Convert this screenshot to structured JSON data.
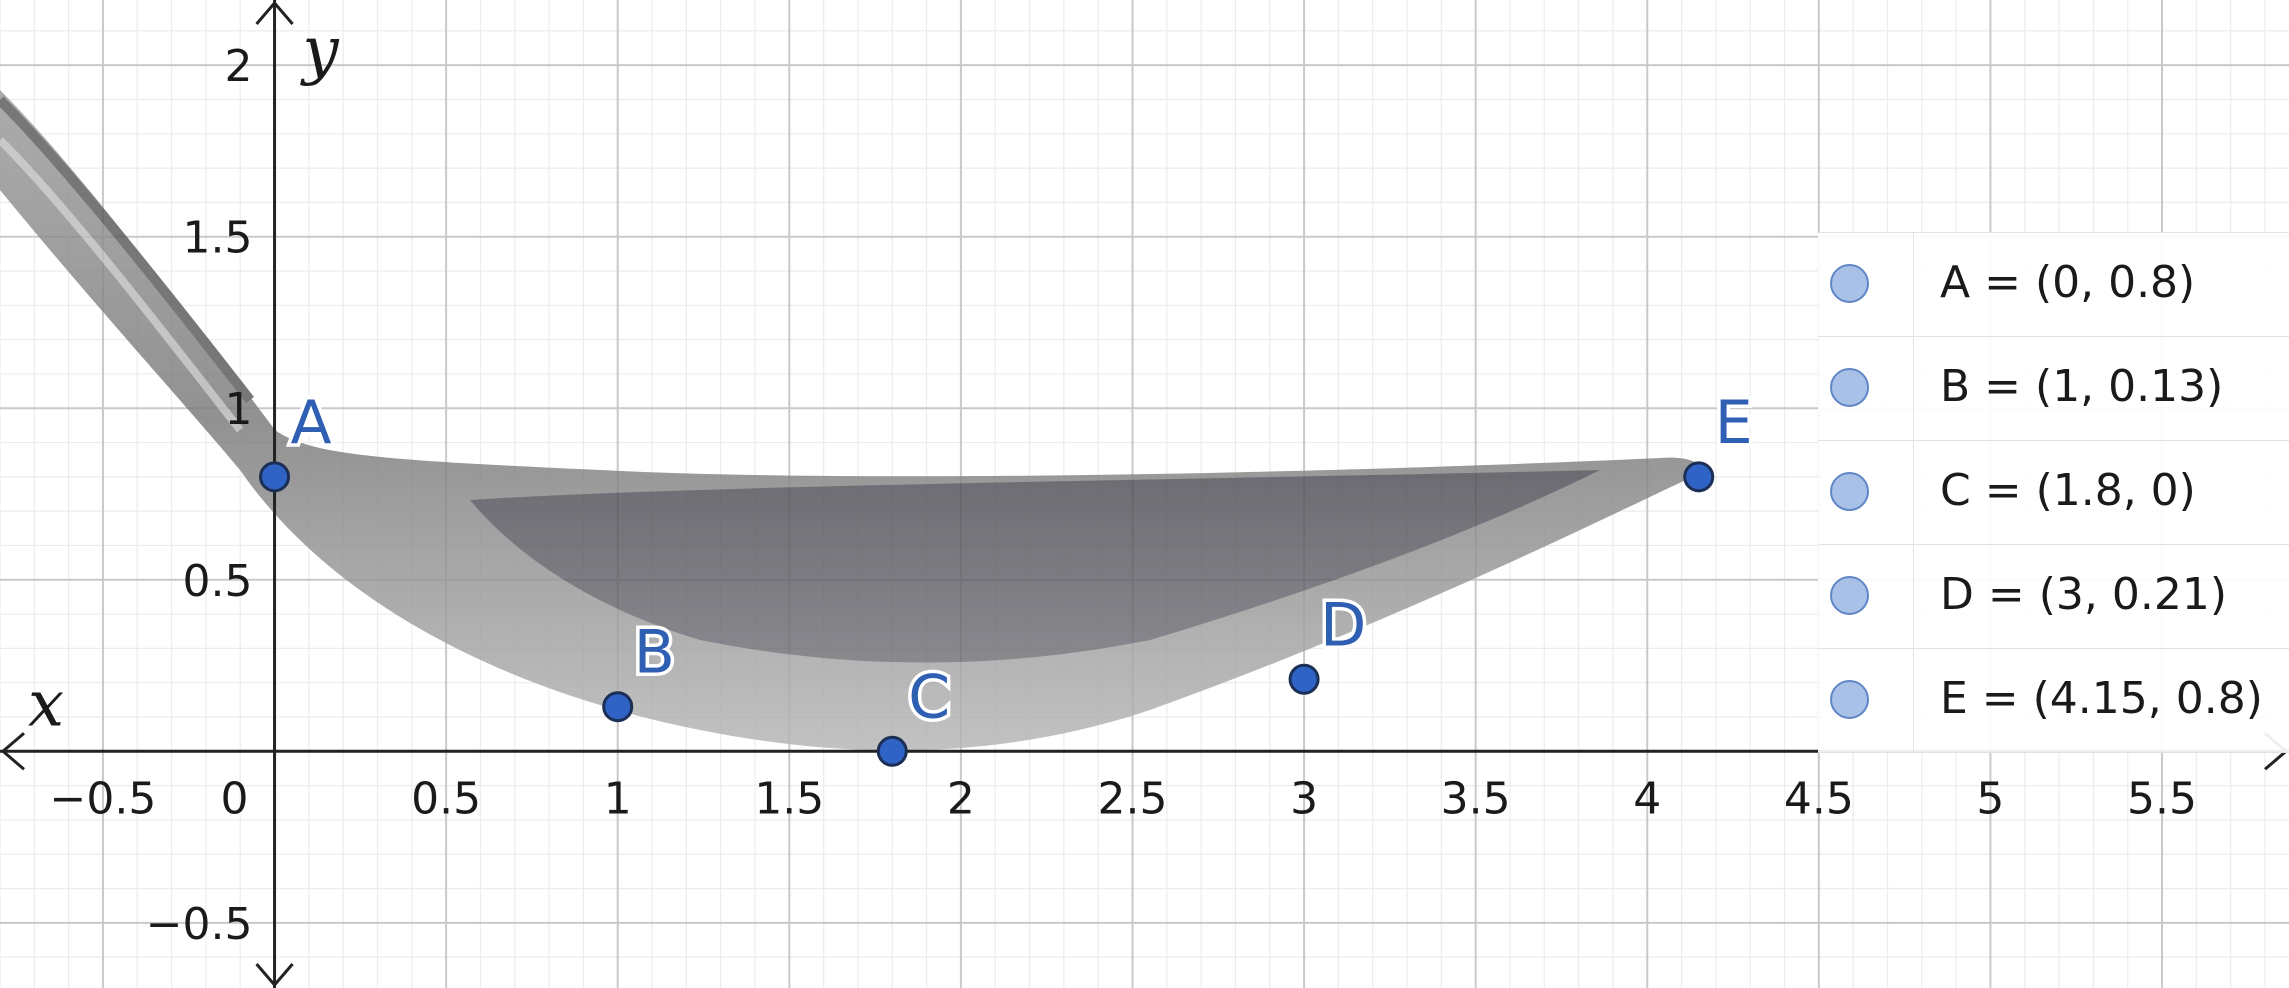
{
  "chart_data": {
    "type": "scatter",
    "xlabel": "x",
    "ylabel": "y",
    "xlim": [
      -0.8,
      5.87
    ],
    "ylim": [
      -0.69,
      2.19
    ],
    "grid": true,
    "x_ticks": [
      "−0.5",
      "0",
      "0.5",
      "1",
      "1.5",
      "2",
      "2.5",
      "3",
      "3.5",
      "4",
      "4.5",
      "5",
      "5.5"
    ],
    "y_ticks": [
      "−0.5",
      "0.5",
      "1",
      "1.5",
      "2"
    ],
    "background_image": "spoon-photo",
    "points": [
      {
        "name": "A",
        "x": 0,
        "y": 0.8
      },
      {
        "name": "B",
        "x": 1,
        "y": 0.13
      },
      {
        "name": "C",
        "x": 1.8,
        "y": 0
      },
      {
        "name": "D",
        "x": 3,
        "y": 0.21
      },
      {
        "name": "E",
        "x": 4.15,
        "y": 0.8
      }
    ],
    "legend_position": "right",
    "colors": {
      "point_fill": "#2f63c6",
      "point_stroke": "#1b2f55",
      "label": "#2f5fb3",
      "legend_dot": "#a9c1e6",
      "grid_major": "#c9c9c9",
      "grid_minor": "#ececec"
    }
  },
  "legend": {
    "items": [
      {
        "text": "A = (0, 0.8)"
      },
      {
        "text": "B = (1, 0.13)"
      },
      {
        "text": "C = (1.8, 0)"
      },
      {
        "text": "D = (3, 0.21)"
      },
      {
        "text": "E = (4.15, 0.8)"
      }
    ]
  }
}
